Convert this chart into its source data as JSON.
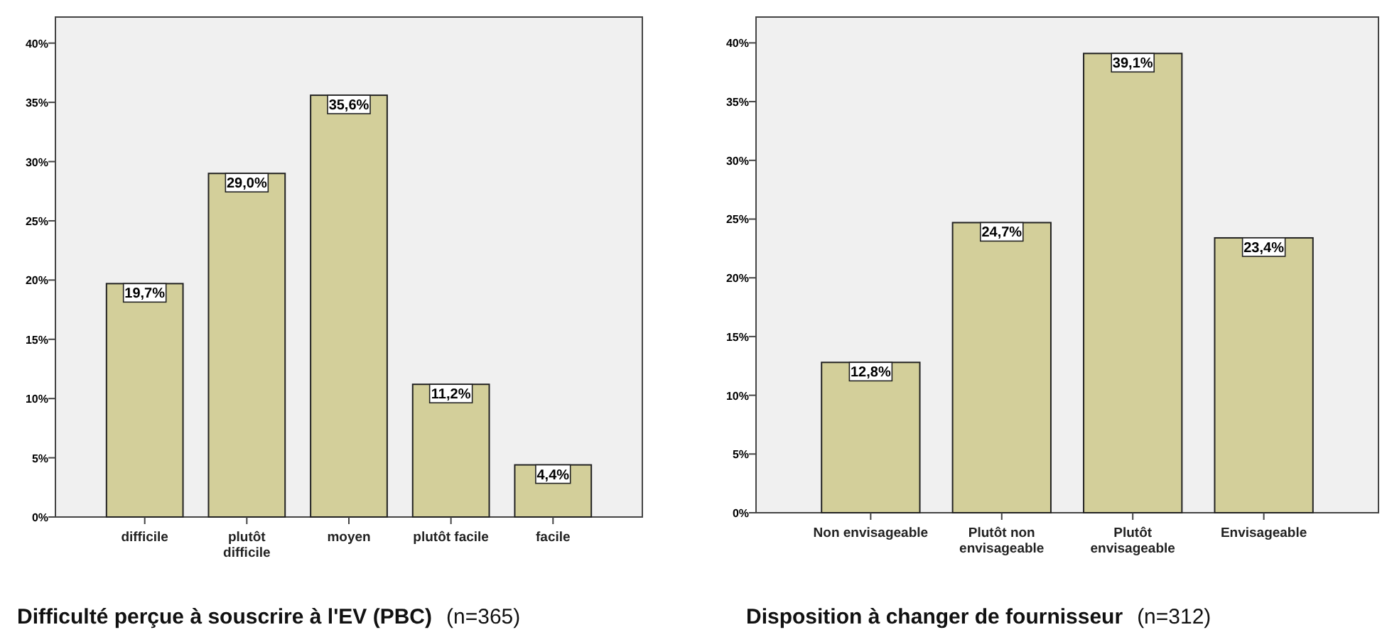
{
  "chart_data": [
    {
      "type": "bar",
      "title": "Difficulté perçue à souscrire à l'EV (PBC)",
      "subtitle": "(n=365)",
      "categories": [
        "difficile",
        "plutôt difficile",
        "moyen",
        "plutôt facile",
        "facile"
      ],
      "values": [
        19.7,
        29.0,
        35.6,
        11.2,
        4.4
      ],
      "value_labels": [
        "19,7%",
        "29,0%",
        "35,6%",
        "11,2%",
        "4,4%"
      ],
      "color": "#d3cf9a",
      "ylim": [
        0,
        42.2
      ],
      "yticks": [
        {
          "value": 0,
          "label": "0%"
        },
        {
          "value": 5,
          "label": "5%"
        },
        {
          "value": 10,
          "label": "10%"
        },
        {
          "value": 15,
          "label": "15%"
        },
        {
          "value": 20,
          "label": "20%"
        },
        {
          "value": 25,
          "label": "25%"
        },
        {
          "value": 30,
          "label": "30%"
        },
        {
          "value": 35,
          "label": "35%"
        },
        {
          "value": 40,
          "label": "40%"
        }
      ]
    },
    {
      "type": "bar",
      "title": "Disposition à changer de fournisseur",
      "subtitle": "(n=312)",
      "categories": [
        "Non envisageable",
        "Plutôt non envisageable",
        "Plutôt envisageable",
        "Envisageable"
      ],
      "values": [
        12.8,
        24.7,
        39.1,
        23.4
      ],
      "value_labels": [
        "12,8%",
        "24,7%",
        "39,1%",
        "23,4%"
      ],
      "color": "#d3cf9a",
      "ylim": [
        0,
        42.2
      ],
      "yticks": [
        {
          "value": 0,
          "label": "0%"
        },
        {
          "value": 5,
          "label": "5%"
        },
        {
          "value": 10,
          "label": "10%"
        },
        {
          "value": 15,
          "label": "15%"
        },
        {
          "value": 20,
          "label": "20%"
        },
        {
          "value": 25,
          "label": "25%"
        },
        {
          "value": 30,
          "label": "30%"
        },
        {
          "value": 35,
          "label": "35%"
        },
        {
          "value": 40,
          "label": "40%"
        }
      ]
    }
  ]
}
